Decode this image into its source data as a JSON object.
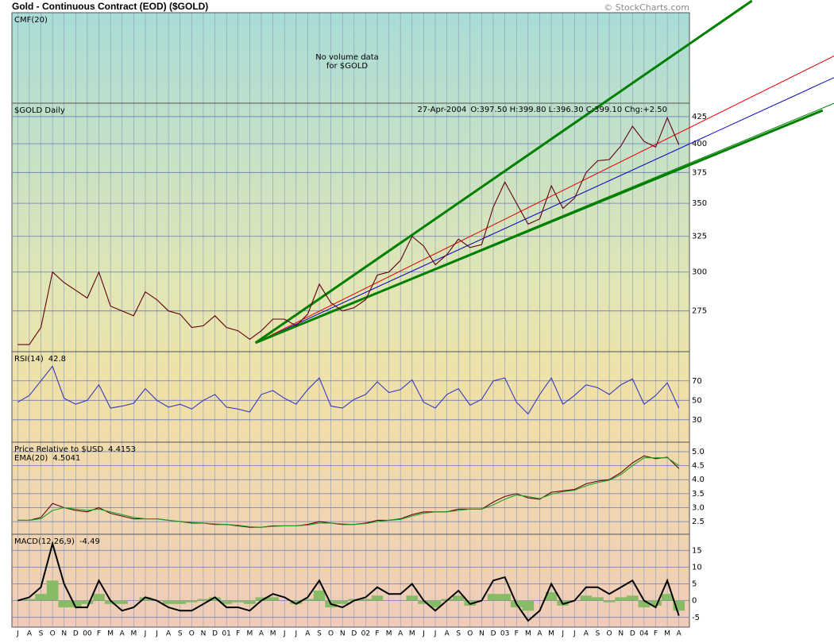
{
  "header": {
    "title": "Gold - Continuous Contract (EOD) ($GOLD)",
    "copyright": "© StockCharts.com"
  },
  "chart_data": [
    {
      "type": "placeholder",
      "label": "CMF(20)",
      "message": [
        "No volume data",
        "for $GOLD"
      ]
    },
    {
      "type": "line",
      "date": "27-Apr-2004",
      "ohlc": "O:397.50 H:399.80 L:396.30 C:399.10 Chg:+2.50",
      "log_scale": true,
      "grid": true,
      "ylim": [
        251,
        438
      ],
      "yticks": [
        275,
        300,
        325,
        350,
        375,
        400,
        425
      ],
      "series": [
        {
          "name": "$GOLD Daily",
          "color": "#600010",
          "values": [
            255,
            255,
            265,
            300,
            293,
            288,
            283,
            300,
            278,
            275,
            272,
            287,
            282,
            275,
            273,
            265,
            266,
            272,
            265,
            263,
            258,
            263,
            270,
            270,
            266,
            273,
            292,
            280,
            275,
            277,
            282,
            298,
            300,
            308,
            325,
            318,
            305,
            312,
            323,
            317,
            319,
            347,
            367,
            350,
            334,
            338,
            364,
            346,
            354,
            375,
            385,
            386,
            398,
            416,
            402,
            397,
            424,
            399
          ]
        }
      ],
      "trendlines": [
        {
          "color": "#008000",
          "width": 3,
          "from": [
            20.5,
            256
          ],
          "to": [
            63.3,
            551
          ]
        },
        {
          "color": "#e00000",
          "width": 1,
          "from": [
            20.5,
            256
          ],
          "to": [
            70.4,
            487
          ]
        },
        {
          "color": "#0000c0",
          "width": 1,
          "from": [
            20.5,
            256
          ],
          "to": [
            70.4,
            464
          ]
        },
        {
          "color": "#008000",
          "width": 1,
          "from": [
            20.5,
            256
          ],
          "to": [
            70.4,
            438
          ]
        },
        {
          "color": "#008000",
          "width": 3,
          "from": [
            20.5,
            256
          ],
          "to": [
            69.4,
            431
          ]
        }
      ]
    },
    {
      "type": "line",
      "grid": true,
      "ylim": [
        7,
        100
      ],
      "yticks": [
        30,
        50,
        70
      ],
      "series": [
        {
          "name": "RSI(14)",
          "color": "#3838c0",
          "last": 42.8,
          "values": [
            48,
            55,
            70,
            85,
            52,
            46,
            50,
            66,
            42,
            44,
            47,
            62,
            50,
            43,
            46,
            41,
            50,
            56,
            43,
            41,
            38,
            56,
            60,
            52,
            46,
            61,
            73,
            44,
            42,
            51,
            56,
            69,
            58,
            61,
            71,
            48,
            42,
            56,
            62,
            45,
            51,
            70,
            73,
            48,
            36,
            56,
            73,
            46,
            55,
            66,
            63,
            56,
            66,
            72,
            46,
            55,
            68,
            42
          ]
        }
      ]
    },
    {
      "type": "line",
      "grid": true,
      "ylim": [
        2.05,
        5.34
      ],
      "yticks": [
        {
          "value": 5,
          "label": "5.0"
        },
        4.5,
        {
          "value": 4,
          "label": "4.0"
        },
        3.5,
        {
          "value": 3,
          "label": "3.0"
        },
        2.5
      ],
      "series": [
        {
          "name": "Price Relative to $USD",
          "color": "#600010",
          "last": 4.4153,
          "values": [
            2.55,
            2.55,
            2.65,
            3.15,
            3.0,
            2.9,
            2.85,
            3.0,
            2.8,
            2.7,
            2.6,
            2.6,
            2.6,
            2.55,
            2.5,
            2.45,
            2.45,
            2.4,
            2.4,
            2.35,
            2.3,
            2.3,
            2.35,
            2.35,
            2.35,
            2.4,
            2.5,
            2.45,
            2.4,
            2.4,
            2.45,
            2.55,
            2.55,
            2.6,
            2.75,
            2.85,
            2.85,
            2.85,
            2.95,
            2.95,
            2.95,
            3.2,
            3.4,
            3.5,
            3.35,
            3.3,
            3.55,
            3.6,
            3.65,
            3.85,
            3.95,
            4.0,
            4.25,
            4.6,
            4.85,
            4.75,
            4.8,
            4.4
          ]
        },
        {
          "name": "EMA(20)",
          "color": "#20a020",
          "last": 4.5041,
          "values": [
            2.55,
            2.55,
            2.6,
            2.9,
            3.0,
            2.95,
            2.9,
            2.95,
            2.85,
            2.75,
            2.65,
            2.6,
            2.6,
            2.55,
            2.5,
            2.47,
            2.45,
            2.42,
            2.4,
            2.37,
            2.32,
            2.3,
            2.33,
            2.35,
            2.35,
            2.38,
            2.45,
            2.45,
            2.42,
            2.4,
            2.43,
            2.5,
            2.55,
            2.58,
            2.7,
            2.8,
            2.85,
            2.85,
            2.9,
            2.95,
            2.95,
            3.1,
            3.3,
            3.45,
            3.4,
            3.32,
            3.48,
            3.57,
            3.62,
            3.78,
            3.9,
            3.98,
            4.18,
            4.5,
            4.78,
            4.78,
            4.78,
            4.5
          ]
        }
      ]
    },
    {
      "type": "line",
      "grid": true,
      "ylim": [
        -7.9,
        19.8
      ],
      "yticks": [
        15,
        10,
        5,
        0,
        -5
      ],
      "categories": [
        "J",
        "A",
        "S",
        "O",
        "N",
        "D",
        "00",
        "F",
        "M",
        "A",
        "M",
        "J",
        "J",
        "A",
        "S",
        "O",
        "N",
        "D",
        "01",
        "F",
        "M",
        "A",
        "M",
        "J",
        "J",
        "A",
        "S",
        "O",
        "N",
        "D",
        "02",
        "F",
        "M",
        "A",
        "M",
        "J",
        "J",
        "A",
        "S",
        "O",
        "N",
        "D",
        "03",
        "F",
        "M",
        "A",
        "M",
        "J",
        "J",
        "A",
        "S",
        "O",
        "N",
        "D",
        "04",
        "F",
        "M",
        "A"
      ],
      "histogram": {
        "color": "#88bb66",
        "values": [
          0,
          0.5,
          2,
          6,
          -2,
          -2,
          -1,
          2,
          -1,
          -1,
          0,
          1,
          0,
          -1,
          -1,
          -0.5,
          0.5,
          1,
          -1,
          -0.5,
          -1,
          1,
          1,
          0,
          -1,
          0.5,
          3,
          -2,
          -1,
          0.5,
          0.5,
          1.5,
          0,
          0,
          1.5,
          -1,
          -2,
          0.5,
          1.5,
          -1.5,
          0,
          2,
          2,
          -2,
          -3,
          0,
          2.5,
          -1.5,
          0,
          1.5,
          1,
          -0.5,
          1,
          1.5,
          -2,
          -1.5,
          2,
          -3
        ]
      },
      "series": [
        {
          "name": "MACD(12,26,9)",
          "color": "#000000",
          "last": -4.49,
          "values": [
            0,
            1,
            4,
            17,
            5,
            -2,
            -2,
            6,
            0,
            -3,
            -2,
            1,
            0,
            -2,
            -3,
            -3,
            -1,
            1,
            -2,
            -2,
            -3,
            0,
            2,
            1,
            -1,
            1,
            6,
            -1,
            -2,
            0,
            1,
            4,
            2,
            2,
            5,
            0,
            -3,
            0,
            3,
            -1,
            0,
            6,
            7,
            -1,
            -6,
            -3,
            5,
            -1,
            0,
            4,
            4,
            2,
            4,
            6,
            0,
            -2,
            6,
            -4.49
          ]
        }
      ]
    }
  ]
}
